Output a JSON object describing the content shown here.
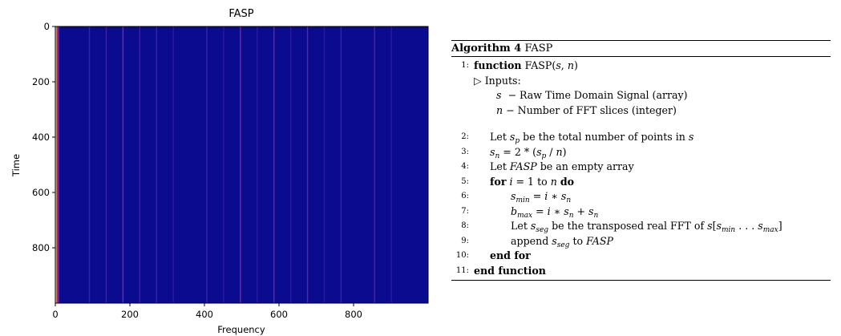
{
  "chart_data": {
    "type": "heatmap",
    "title": "FASP",
    "xlabel": "Frequency",
    "ylabel": "Time",
    "xlim": [
      0,
      1000
    ],
    "ylim": [
      1000,
      0
    ],
    "x_ticks": [
      "0",
      "200",
      "400",
      "600",
      "800"
    ],
    "y_ticks": [
      "0",
      "200",
      "400",
      "600",
      "800"
    ],
    "background_color": "#0b0b8f",
    "bright_columns": [
      {
        "x": 1,
        "color": "#e8e030"
      },
      {
        "x": 3,
        "color": "#c43a7a"
      },
      {
        "x": 5,
        "color": "#9a2a8f"
      },
      {
        "x": 8,
        "color": "#5a1a9a"
      },
      {
        "x": 90,
        "color": "#3a22a8"
      },
      {
        "x": 135,
        "color": "#3a22a8"
      },
      {
        "x": 180,
        "color": "#7a2898"
      },
      {
        "x": 225,
        "color": "#3a22a8"
      },
      {
        "x": 270,
        "color": "#3a22a8"
      },
      {
        "x": 315,
        "color": "#2a1aa0"
      },
      {
        "x": 405,
        "color": "#3a22a8"
      },
      {
        "x": 450,
        "color": "#2a1aa0"
      },
      {
        "x": 495,
        "color": "#7a2898"
      },
      {
        "x": 540,
        "color": "#2a1aa0"
      },
      {
        "x": 585,
        "color": "#6a2498"
      },
      {
        "x": 630,
        "color": "#2a1aa0"
      },
      {
        "x": 675,
        "color": "#6a2498"
      },
      {
        "x": 720,
        "color": "#2a1aa0"
      },
      {
        "x": 765,
        "color": "#3a22a8"
      },
      {
        "x": 855,
        "color": "#5a2098"
      },
      {
        "x": 900,
        "color": "#2a1aa0"
      }
    ]
  },
  "algorithm": {
    "caption_label": "Algorithm 4",
    "caption_name": "FASP",
    "lines": [
      {
        "num": "1:",
        "kw": "function",
        "text": "FASP(s, n)"
      },
      {
        "num": "",
        "text": "▷ Inputs:"
      },
      {
        "num": "",
        "text": "s  − Raw Time Domain Signal (array)"
      },
      {
        "num": "",
        "text": "n − Number of FFT slices (integer)"
      },
      {
        "num": "2:",
        "text": "Let s_p be the total number of points in s"
      },
      {
        "num": "3:",
        "text": "s_n = 2 * (s_p / n)"
      },
      {
        "num": "4:",
        "text": "Let FASP be an empty array"
      },
      {
        "num": "5:",
        "kw": "for",
        "text": "i = 1 to n",
        "kw2": "do"
      },
      {
        "num": "6:",
        "text": "s_min = i ∗ s_n"
      },
      {
        "num": "7:",
        "text": "b_max = i ∗ s_n + s_n"
      },
      {
        "num": "8:",
        "text": "Let s_seg be the transposed real FFT of s[s_min . . . s_max]"
      },
      {
        "num": "9:",
        "text": "append s_seg to FASP"
      },
      {
        "num": "10:",
        "kw": "end for"
      },
      {
        "num": "11:",
        "kw": "end function"
      }
    ]
  }
}
